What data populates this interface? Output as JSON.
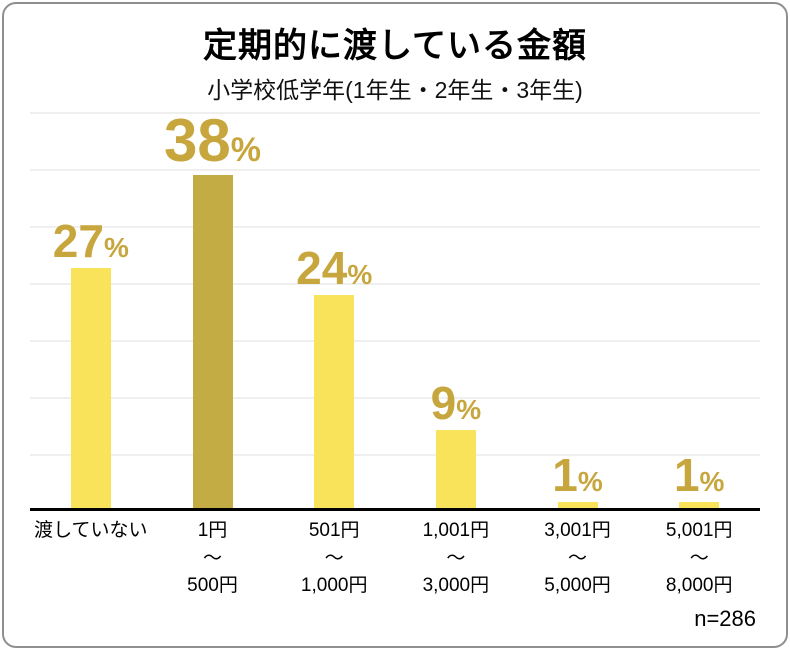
{
  "chart": {
    "title": "定期的に渡している金額",
    "subtitle": "小学校低学年(1年生・2年生・3年生)",
    "sample_size": "n=286"
  },
  "chart_data": {
    "type": "bar",
    "title": "定期的に渡している金額",
    "subtitle": "小学校低学年(1年生・2年生・3年生)",
    "categories": [
      "渡していない",
      "1円〜500円",
      "501円〜1,000円",
      "1,001円〜3,000円",
      "3,001円〜5,000円",
      "5,001円〜8,000円"
    ],
    "category_lines": [
      [
        "渡していない"
      ],
      [
        "1円",
        "〜",
        "500円"
      ],
      [
        "501円",
        "〜",
        "1,000円"
      ],
      [
        "1,001円",
        "〜",
        "3,000円"
      ],
      [
        "3,001円",
        "〜",
        "5,000円"
      ],
      [
        "5,001円",
        "〜",
        "8,000円"
      ]
    ],
    "values": [
      27,
      38,
      24,
      9,
      1,
      1
    ],
    "unit": "%",
    "xlabel": "",
    "ylabel": "",
    "ylim": [
      0,
      40
    ],
    "grid": "faint horizontal lines",
    "legend": "none",
    "annotation": "n=286",
    "highlight_index": 1,
    "colors": {
      "bar_default": "#F8E35A",
      "bar_highlight": "#C3AC44",
      "value_label": "#C8A63E",
      "axis": "#000000"
    }
  }
}
